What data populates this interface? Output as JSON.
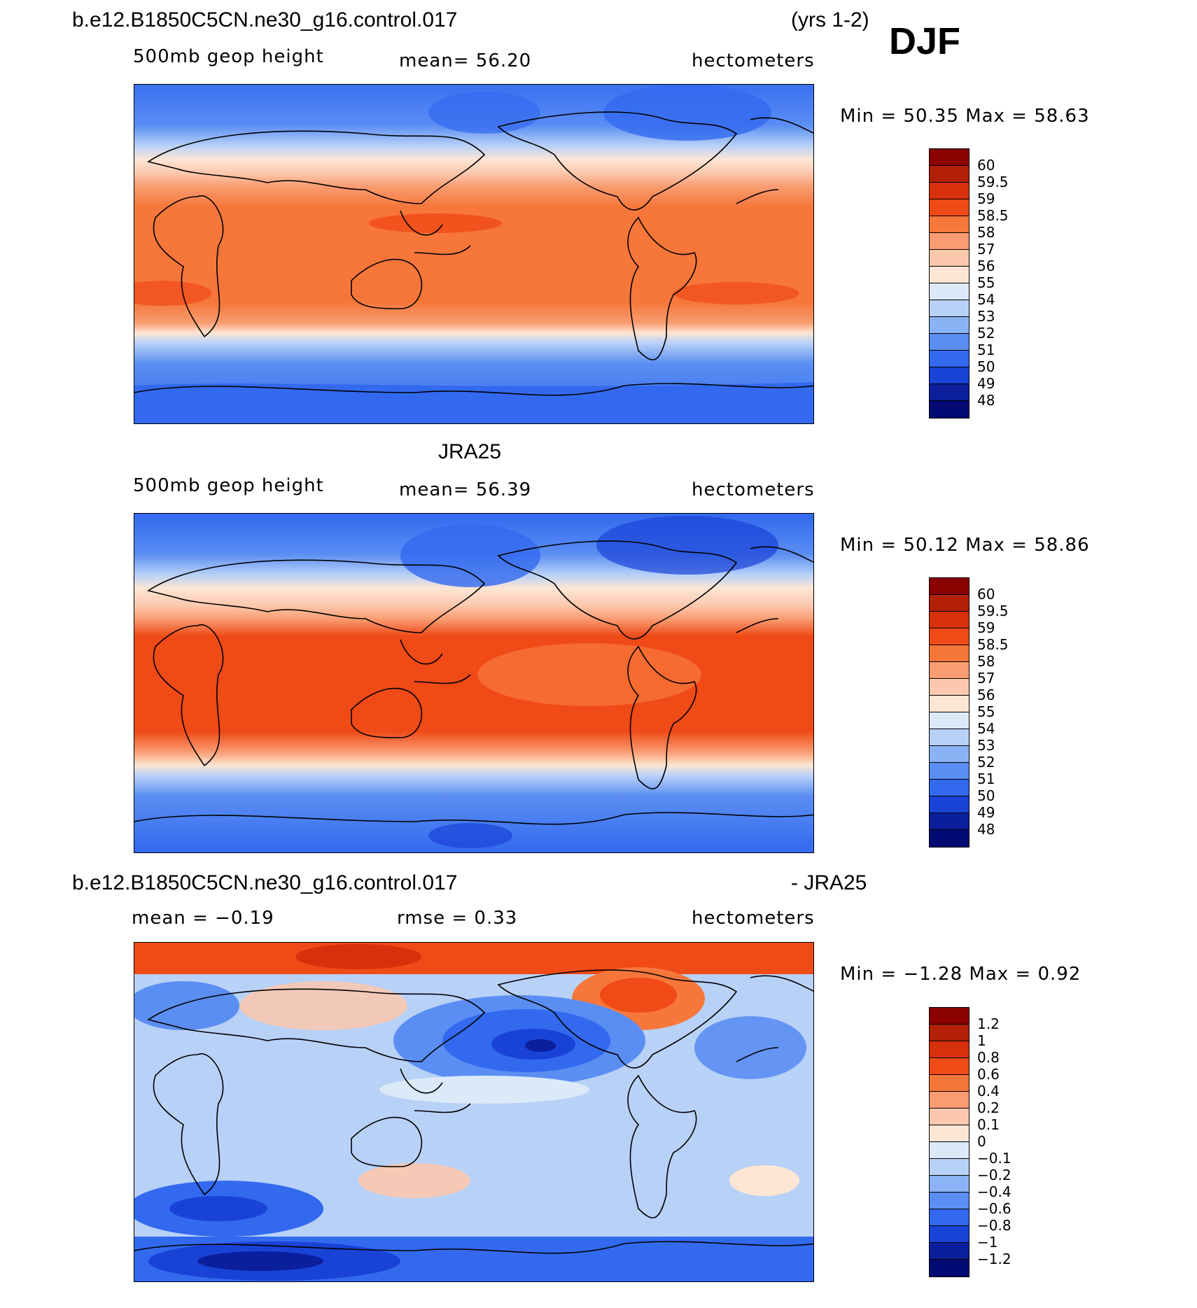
{
  "header": {
    "case_name": "b.e12.B1850C5CN.ne30_g16.control.017",
    "years": "(yrs 1-2)",
    "season": "DJF"
  },
  "panels": [
    {
      "title": "",
      "variable": "500mb geop height",
      "mean_text": "mean=   56.20",
      "units": "hectometers",
      "min_max_text": "Min =   50.35 Max =   58.63",
      "colorbar_labels": [
        "60",
        "59.5",
        "59",
        "58.5",
        "58",
        "57",
        "56",
        "55",
        "54",
        "53",
        "52",
        "51",
        "50",
        "49",
        "48"
      ],
      "colorbar_colors": [
        "#8b0000",
        "#b22007",
        "#d7300c",
        "#f04a17",
        "#f7773a",
        "#f99c71",
        "#fcc8ad",
        "#fde6d4",
        "#dce9f8",
        "#b8d1f7",
        "#8ab2f5",
        "#5b8ef3",
        "#3269ef",
        "#1943d7",
        "#0b1f9c",
        "#040a73"
      ]
    },
    {
      "title": "JRA25",
      "variable": "500mb geop height",
      "mean_text": "mean=   56.39",
      "units": "hectometers",
      "min_max_text": "Min =   50.12 Max =   58.86",
      "colorbar_labels": [
        "60",
        "59.5",
        "59",
        "58.5",
        "58",
        "57",
        "56",
        "55",
        "54",
        "53",
        "52",
        "51",
        "50",
        "49",
        "48"
      ],
      "colorbar_colors": [
        "#8b0000",
        "#b22007",
        "#d7300c",
        "#f04a17",
        "#f7773a",
        "#f99c71",
        "#fcc8ad",
        "#fde6d4",
        "#dce9f8",
        "#b8d1f7",
        "#8ab2f5",
        "#5b8ef3",
        "#3269ef",
        "#1943d7",
        "#0b1f9c",
        "#040a73"
      ]
    },
    {
      "title_left": "b.e12.B1850C5CN.ne30_g16.control.017",
      "title_right": "- JRA25",
      "mean_text": "mean =   −0.19",
      "rmse_text": "rmse =    0.33",
      "units": "hectometers",
      "min_max_text": "Min =   −1.28 Max =    0.92",
      "colorbar_labels": [
        "1.2",
        "1",
        "0.8",
        "0.6",
        "0.4",
        "0.2",
        "0.1",
        "0",
        "−0.1",
        "−0.2",
        "−0.4",
        "−0.6",
        "−0.8",
        "−1",
        "−1.2"
      ],
      "colorbar_colors": [
        "#8b0000",
        "#b22007",
        "#d7300c",
        "#f04a17",
        "#f7773a",
        "#f99c71",
        "#fcc8ad",
        "#fde6d4",
        "#dce9f8",
        "#b8d1f7",
        "#8ab2f5",
        "#5b8ef3",
        "#3269ef",
        "#1943d7",
        "#0b1f9c",
        "#040a73"
      ]
    }
  ],
  "chart_data": [
    {
      "type": "heatmap",
      "title": "b.e12.B1850C5CN.ne30_g16.control.017 (yrs 1-2) DJF",
      "variable": "500mb geop height",
      "units": "hectometers",
      "mean": 56.2,
      "min": 50.35,
      "max": 58.63,
      "levels": [
        48,
        49,
        50,
        51,
        52,
        53,
        54,
        55,
        56,
        57,
        58,
        58.5,
        59,
        59.5,
        60
      ]
    },
    {
      "type": "heatmap",
      "title": "JRA25",
      "variable": "500mb geop height",
      "units": "hectometers",
      "mean": 56.39,
      "min": 50.12,
      "max": 58.86,
      "levels": [
        48,
        49,
        50,
        51,
        52,
        53,
        54,
        55,
        56,
        57,
        58,
        58.5,
        59,
        59.5,
        60
      ]
    },
    {
      "type": "heatmap",
      "title": "b.e12.B1850C5CN.ne30_g16.control.017 - JRA25",
      "units": "hectometers",
      "mean": -0.19,
      "rmse": 0.33,
      "min": -1.28,
      "max": 0.92,
      "levels": [
        -1.2,
        -1,
        -0.8,
        -0.6,
        -0.4,
        -0.2,
        -0.1,
        0,
        0.1,
        0.2,
        0.4,
        0.6,
        0.8,
        1,
        1.2
      ]
    }
  ]
}
